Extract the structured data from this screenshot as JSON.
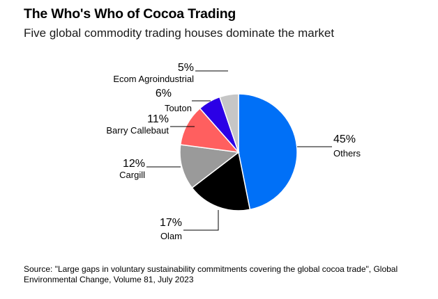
{
  "title": "The Who's Who of Cocoa Trading",
  "subtitle": "Five global commodity trading houses dominate the market",
  "source": "Source: \"Large gaps in voluntary sustainability commitments covering the global cocoa trade\", Global Environmental Change, Volume 81, July 2023",
  "chart_data": {
    "type": "pie",
    "title": "The Who's Who of Cocoa Trading",
    "subtitle": "Five global commodity trading houses dominate the market",
    "unit": "%",
    "slices": [
      {
        "label": "Others",
        "value": 45,
        "display": "45%",
        "color": "#0070f7"
      },
      {
        "label": "Olam",
        "value": 17,
        "display": "17%",
        "color": "#000000"
      },
      {
        "label": "Cargill",
        "value": 12,
        "display": "12%",
        "color": "#9a9a9a"
      },
      {
        "label": "Barry Callebaut",
        "value": 11,
        "display": "11%",
        "color": "#ff5f5f"
      },
      {
        "label": "Touton",
        "value": 6,
        "display": "6%",
        "color": "#2b00e6"
      },
      {
        "label": "Ecom Agroindustrial",
        "value": 5,
        "display": "5%",
        "color": "#c6c6c6"
      }
    ]
  }
}
